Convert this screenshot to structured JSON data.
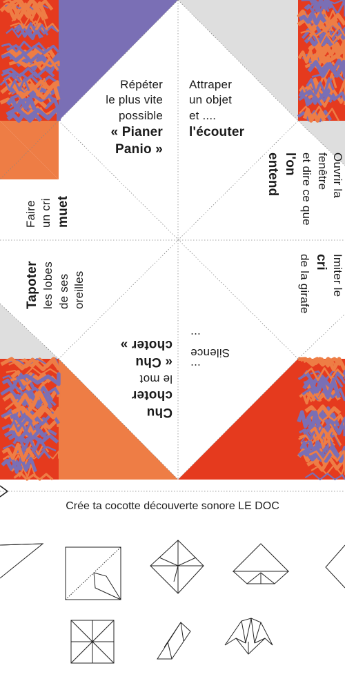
{
  "colors": {
    "purple": "#7a6fb5",
    "orange": "#ee7d45",
    "red": "#e53a1e",
    "grey": "#dedede",
    "line": "#888888"
  },
  "flaps": {
    "top_left": {
      "lines": [
        "Répéter",
        "le plus vite",
        "possible"
      ],
      "bold": [
        "« Pianer",
        "Panio »"
      ]
    },
    "top_right": {
      "lines": [
        "Attraper",
        "un objet",
        "et ...."
      ],
      "bold": [
        "l'écouter"
      ]
    },
    "right_upper": {
      "lines": [
        "Ouvrir la",
        "fenêtre",
        "et dire ce que"
      ],
      "bold": [
        "l'on",
        "entend"
      ]
    },
    "right_lower": {
      "lines_a": [
        "Imiter le"
      ],
      "bold": [
        "cri"
      ],
      "lines_b": [
        "de la girafe"
      ]
    },
    "bottom_right": {
      "lines": [
        "Silence",
        "..."
      ],
      "lead": [
        "..."
      ]
    },
    "bottom_left": {
      "bold_a": [
        "Chu",
        "choter"
      ],
      "lines": [
        "le mot"
      ],
      "bold_b": [
        "« Chu",
        "choter »"
      ]
    },
    "left_lower": {
      "bold": [
        "Tapoter"
      ],
      "lines": [
        "les lobes",
        "de ses",
        "oreilles"
      ]
    },
    "left_upper": {
      "lines": [
        "Faire",
        "un cri"
      ],
      "bold": [
        "muet"
      ]
    }
  },
  "caption": "Crée ta cocotte découverte sonore LE DOC",
  "icons": [
    "scissors-icon",
    "fold-step-1-icon",
    "fold-step-2-icon",
    "fold-step-3-icon",
    "fold-step-4-icon",
    "fold-step-5-icon",
    "fold-step-6-icon",
    "fold-step-7-icon",
    "fold-step-8-icon"
  ]
}
